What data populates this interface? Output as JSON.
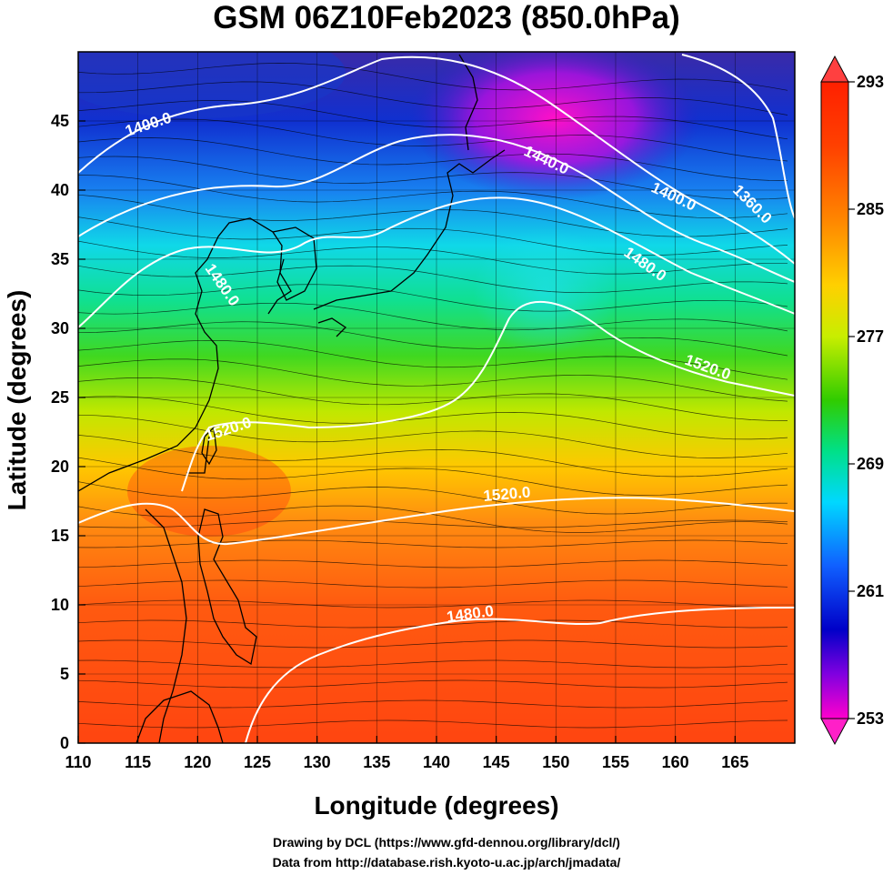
{
  "title": "GSM 06Z10Feb2023 (850.0hPa)",
  "xlabel": "Longitude (degrees)",
  "ylabel": "Latitude  (degrees)",
  "x_ticks": [
    "110",
    "115",
    "120",
    "125",
    "130",
    "135",
    "140",
    "145",
    "150",
    "155",
    "160",
    "165"
  ],
  "y_ticks": [
    "0",
    "5",
    "10",
    "15",
    "20",
    "25",
    "30",
    "35",
    "40",
    "45"
  ],
  "colorbar_ticks": [
    "293",
    "285",
    "277",
    "269",
    "261",
    "253"
  ],
  "contour_labels": [
    "1400.0",
    "1440.0",
    "1400.0",
    "1360.0",
    "1480.0",
    "1480.0",
    "1520.0",
    "1520.0",
    "1520.0",
    "1480.0"
  ],
  "credits": {
    "drawing": "Drawing by DCL (https://www.gfd-dennou.org/library/dcl/)",
    "data": "Data from http://database.rish.kyoto-u.ac.jp/arch/jmadata/"
  },
  "map": {
    "lon_range": [
      110,
      170
    ],
    "lat_range": [
      0,
      50
    ],
    "grid": true,
    "colorbar_range": [
      253,
      293
    ],
    "colorbar_colors": [
      "#ff00cc",
      "#9900ff",
      "#0000cc",
      "#0055ff",
      "#00ccff",
      "#00ee99",
      "#22cc00",
      "#aaee00",
      "#ffcc00",
      "#ff7700",
      "#ff2200"
    ]
  }
}
